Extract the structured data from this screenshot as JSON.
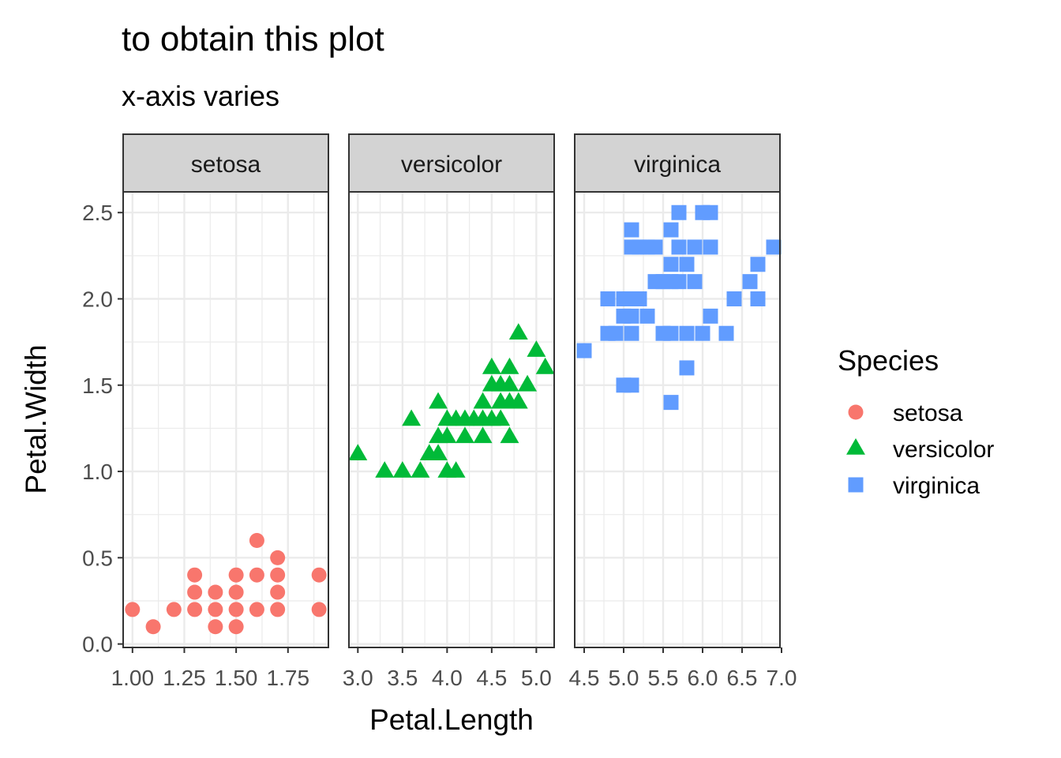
{
  "title": "to obtain this plot",
  "subtitle": "x-axis varies",
  "xlabel": "Petal.Length",
  "ylabel": "Petal.Width",
  "legend": {
    "title": "Species",
    "entries": [
      {
        "label": "setosa",
        "color": "#F8766D",
        "shape": "circle"
      },
      {
        "label": "versicolor",
        "color": "#00BA38",
        "shape": "triangle"
      },
      {
        "label": "virginica",
        "color": "#619CFF",
        "shape": "square"
      }
    ]
  },
  "chart_data": {
    "type": "scatter",
    "facet_by": "Species",
    "free_x": true,
    "ylim": [
      -0.02,
      2.62
    ],
    "yticks": [
      0.0,
      0.5,
      1.0,
      1.5,
      2.0,
      2.5
    ],
    "ytick_labels": [
      "0.0",
      "0.5",
      "1.0",
      "1.5",
      "2.0",
      "2.5"
    ],
    "grid": true,
    "legend_position": "right",
    "panels": [
      {
        "strip": "setosa",
        "color": "#F8766D",
        "shape": "circle",
        "xlim": [
          0.955,
          1.945
        ],
        "xticks": [
          1.0,
          1.25,
          1.5,
          1.75
        ],
        "xtick_labels": [
          "1.00",
          "1.25",
          "1.50",
          "1.75"
        ],
        "points": [
          [
            1.0,
            0.2
          ],
          [
            1.1,
            0.1
          ],
          [
            1.2,
            0.2
          ],
          [
            1.3,
            0.2
          ],
          [
            1.3,
            0.3
          ],
          [
            1.3,
            0.4
          ],
          [
            1.4,
            0.1
          ],
          [
            1.4,
            0.2
          ],
          [
            1.4,
            0.3
          ],
          [
            1.5,
            0.1
          ],
          [
            1.5,
            0.2
          ],
          [
            1.5,
            0.3
          ],
          [
            1.5,
            0.4
          ],
          [
            1.6,
            0.2
          ],
          [
            1.6,
            0.4
          ],
          [
            1.6,
            0.6
          ],
          [
            1.7,
            0.2
          ],
          [
            1.7,
            0.3
          ],
          [
            1.7,
            0.4
          ],
          [
            1.7,
            0.5
          ],
          [
            1.9,
            0.2
          ],
          [
            1.9,
            0.4
          ]
        ]
      },
      {
        "strip": "versicolor",
        "color": "#00BA38",
        "shape": "triangle",
        "xlim": [
          2.9,
          5.2
        ],
        "xticks": [
          3.0,
          3.5,
          4.0,
          4.5,
          5.0
        ],
        "xtick_labels": [
          "3.0",
          "3.5",
          "4.0",
          "4.5",
          "5.0"
        ],
        "points": [
          [
            3.0,
            1.1
          ],
          [
            3.3,
            1.0
          ],
          [
            3.5,
            1.0
          ],
          [
            3.6,
            1.3
          ],
          [
            3.7,
            1.0
          ],
          [
            3.8,
            1.1
          ],
          [
            3.9,
            1.1
          ],
          [
            3.9,
            1.2
          ],
          [
            3.9,
            1.4
          ],
          [
            4.0,
            1.0
          ],
          [
            4.0,
            1.2
          ],
          [
            4.0,
            1.3
          ],
          [
            4.1,
            1.0
          ],
          [
            4.1,
            1.3
          ],
          [
            4.2,
            1.2
          ],
          [
            4.2,
            1.3
          ],
          [
            4.3,
            1.3
          ],
          [
            4.4,
            1.2
          ],
          [
            4.4,
            1.3
          ],
          [
            4.4,
            1.4
          ],
          [
            4.5,
            1.3
          ],
          [
            4.5,
            1.5
          ],
          [
            4.5,
            1.6
          ],
          [
            4.6,
            1.3
          ],
          [
            4.6,
            1.4
          ],
          [
            4.6,
            1.5
          ],
          [
            4.7,
            1.2
          ],
          [
            4.7,
            1.4
          ],
          [
            4.7,
            1.5
          ],
          [
            4.7,
            1.6
          ],
          [
            4.8,
            1.4
          ],
          [
            4.8,
            1.8
          ],
          [
            4.9,
            1.5
          ],
          [
            5.0,
            1.7
          ],
          [
            5.1,
            1.6
          ]
        ]
      },
      {
        "strip": "virginica",
        "color": "#619CFF",
        "shape": "square",
        "xlim": [
          4.38,
          6.98
        ],
        "xticks": [
          4.5,
          5.0,
          5.5,
          6.0,
          6.5,
          7.0
        ],
        "xtick_labels": [
          "4.5",
          "5.0",
          "5.5",
          "6.0",
          "6.5",
          "7.0"
        ],
        "points": [
          [
            4.5,
            1.7
          ],
          [
            4.8,
            1.8
          ],
          [
            4.8,
            2.0
          ],
          [
            4.9,
            1.8
          ],
          [
            5.0,
            1.5
          ],
          [
            5.0,
            1.9
          ],
          [
            5.0,
            2.0
          ],
          [
            5.1,
            1.5
          ],
          [
            5.1,
            1.8
          ],
          [
            5.1,
            1.9
          ],
          [
            5.1,
            2.0
          ],
          [
            5.1,
            2.3
          ],
          [
            5.1,
            2.4
          ],
          [
            5.2,
            2.0
          ],
          [
            5.2,
            2.3
          ],
          [
            5.3,
            1.9
          ],
          [
            5.3,
            2.3
          ],
          [
            5.4,
            2.1
          ],
          [
            5.4,
            2.3
          ],
          [
            5.5,
            1.8
          ],
          [
            5.5,
            2.1
          ],
          [
            5.6,
            1.4
          ],
          [
            5.6,
            1.8
          ],
          [
            5.6,
            2.1
          ],
          [
            5.6,
            2.2
          ],
          [
            5.6,
            2.4
          ],
          [
            5.7,
            2.1
          ],
          [
            5.7,
            2.3
          ],
          [
            5.7,
            2.5
          ],
          [
            5.8,
            1.6
          ],
          [
            5.8,
            1.8
          ],
          [
            5.8,
            2.2
          ],
          [
            5.9,
            2.1
          ],
          [
            5.9,
            2.3
          ],
          [
            6.0,
            1.8
          ],
          [
            6.0,
            2.5
          ],
          [
            6.1,
            1.9
          ],
          [
            6.1,
            2.3
          ],
          [
            6.1,
            2.5
          ],
          [
            6.3,
            1.8
          ],
          [
            6.4,
            2.0
          ],
          [
            6.6,
            2.1
          ],
          [
            6.7,
            2.0
          ],
          [
            6.7,
            2.2
          ],
          [
            6.9,
            2.3
          ]
        ]
      }
    ]
  }
}
